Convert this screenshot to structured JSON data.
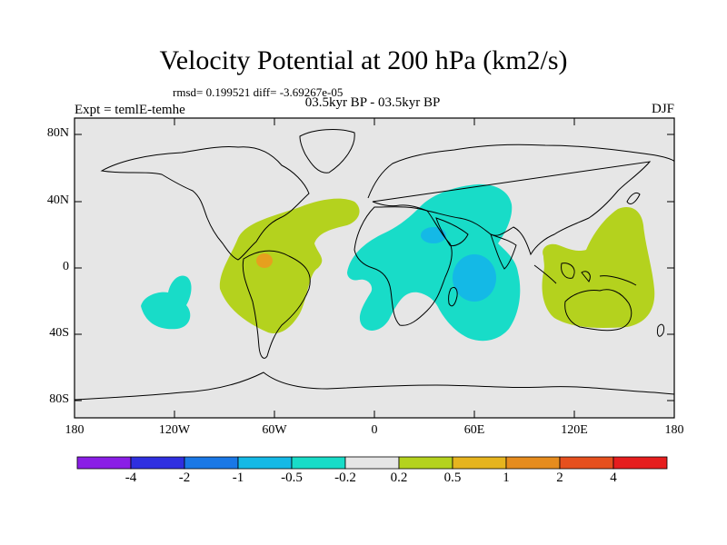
{
  "title": "Velocity Potential at 200 hPa (km2/s)",
  "stats_text": "rmsd= 0.199521 diff= -3.69267e-05",
  "left_label": "Expt = temlE-temhe",
  "center_label": "03.5kyr BP - 03.5kyr BP",
  "right_label": "DJF",
  "lat_ticks": [
    "80N",
    "40N",
    "0",
    "40S",
    "80S"
  ],
  "lon_ticks": [
    "180",
    "120W",
    "60W",
    "0",
    "60E",
    "120E",
    "180"
  ],
  "colorbar": {
    "colors": [
      "#8a1ee6",
      "#2f2fe0",
      "#1a78e6",
      "#14b9e6",
      "#18dcc8",
      "#e6e6e6",
      "#b4d21e",
      "#e6b41e",
      "#e68c1e",
      "#e6501e",
      "#e61e1e"
    ],
    "labels": [
      "-4",
      "-2",
      "-1",
      "-0.5",
      "-0.2",
      "0.2",
      "0.5",
      "1",
      "2",
      "4"
    ]
  },
  "legend_colors": {
    "background": "#e6e6e6",
    "positive_weak": "#b4d21e",
    "positive_mid": "#e6a01e",
    "negative_weak": "#18dcc8",
    "negative_mid": "#14b9e6",
    "coast": "#000000"
  }
}
